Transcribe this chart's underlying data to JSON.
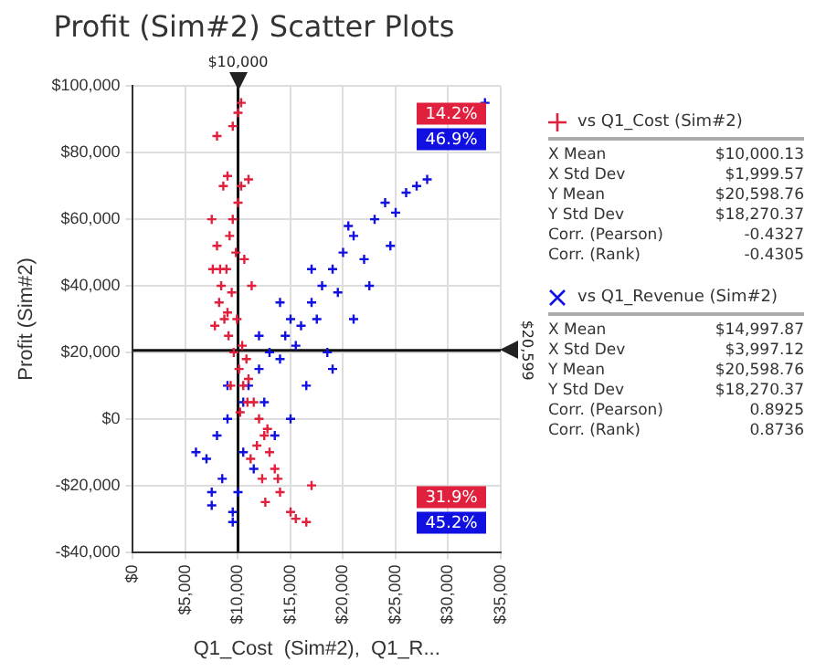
{
  "chart_data": {
    "type": "scatter",
    "title": "Profit (Sim#2) Scatter Plots",
    "xlabel": "Q1_Cost  (Sim#2),  Q1_R...",
    "ylabel": "Profit (Sim#2)",
    "xlim": [
      0,
      35000
    ],
    "ylim": [
      -40000,
      100000
    ],
    "xticks": [
      {
        "value": 0,
        "label": "$0"
      },
      {
        "value": 5000,
        "label": "$5,000"
      },
      {
        "value": 10000,
        "label": "$10,000"
      },
      {
        "value": 15000,
        "label": "$15,000"
      },
      {
        "value": 20000,
        "label": "$20,000"
      },
      {
        "value": 25000,
        "label": "$25,000"
      },
      {
        "value": 30000,
        "label": "$30,000"
      },
      {
        "value": 35000,
        "label": "$35,000"
      }
    ],
    "yticks": [
      {
        "value": -40000,
        "label": "-$40,000"
      },
      {
        "value": -20000,
        "label": "-$20,000"
      },
      {
        "value": 0,
        "label": "$0"
      },
      {
        "value": 20000,
        "label": "$20,000"
      },
      {
        "value": 40000,
        "label": "$40,000"
      },
      {
        "value": 60000,
        "label": "$60,000"
      },
      {
        "value": 80000,
        "label": "$80,000"
      },
      {
        "value": 100000,
        "label": "$100,000"
      }
    ],
    "grid": true,
    "legend": "right",
    "marker": "cross",
    "ref_lines": [
      {
        "axis": "x",
        "value": 10000,
        "label": "$10,000"
      },
      {
        "axis": "y",
        "value": 20599,
        "label": "$20,599"
      }
    ],
    "series": [
      {
        "name": "vs Q1_Cost (Sim#2)",
        "color": "#e0203c",
        "x": [
          7500,
          8000,
          8300,
          8600,
          9000,
          9200,
          9500,
          9800,
          10000,
          10300,
          10600,
          11000,
          11300,
          8200,
          8700,
          9100,
          9600,
          10100,
          10500,
          10900,
          7800,
          8400,
          8900,
          9400,
          9900,
          10400,
          10800,
          11500,
          12000,
          12500,
          13000,
          13500,
          14000,
          15000,
          15500,
          16500,
          17000,
          11800,
          12300,
          9500,
          10000,
          10300,
          8000,
          9000,
          11000,
          10200,
          12600,
          7600,
          9300,
          11200,
          13800,
          12800
        ],
        "values": [
          60000,
          85000,
          45000,
          70000,
          73000,
          55000,
          88000,
          50000,
          92000,
          95000,
          48000,
          72000,
          40000,
          35000,
          30000,
          25000,
          20000,
          15000,
          10000,
          5000,
          28000,
          40000,
          45000,
          38000,
          30000,
          22000,
          18000,
          5000,
          0,
          -5000,
          -10000,
          -15000,
          -22000,
          -28000,
          -30000,
          -31000,
          -20000,
          -8000,
          -18000,
          60000,
          65000,
          70000,
          52000,
          32000,
          12000,
          2000,
          -25000,
          45000,
          10000,
          -12000,
          -18000,
          -3000
        ]
      },
      {
        "name": "vs Q1_Revenue (Sim#2)",
        "color": "#1010e0",
        "x": [
          6000,
          7000,
          7500,
          7500,
          9500,
          9500,
          10000,
          8000,
          9000,
          10500,
          11000,
          12000,
          12500,
          13000,
          14000,
          14500,
          15000,
          15500,
          16000,
          17000,
          17500,
          18000,
          19000,
          19500,
          20000,
          21000,
          22000,
          23000,
          24000,
          25000,
          26000,
          27000,
          28000,
          33500,
          21000,
          16500,
          18500,
          13500,
          11500,
          10500,
          15000,
          20500,
          22500,
          24500,
          12000,
          14000,
          17000,
          19000,
          9000,
          8500
        ],
        "values": [
          -10000,
          -12000,
          -22000,
          -26000,
          -28000,
          -31000,
          -22000,
          -5000,
          0,
          5000,
          10000,
          15000,
          5000,
          20000,
          18000,
          25000,
          30000,
          22000,
          28000,
          35000,
          30000,
          40000,
          45000,
          38000,
          50000,
          55000,
          48000,
          60000,
          65000,
          62000,
          68000,
          70000,
          72000,
          95000,
          30000,
          10000,
          20000,
          -5000,
          -15000,
          -10000,
          0,
          58000,
          40000,
          52000,
          25000,
          35000,
          45000,
          15000,
          10000,
          -18000
        ]
      }
    ],
    "annotations": [
      "14.2%",
      "46.9%",
      "31.9%",
      "45.2%",
      "X Mean $10,000.13",
      "X Std Dev $1,999.57",
      "Y Mean $20,598.76",
      "Y Std Dev $18,270.37",
      "Corr. (Pearson) -0.4327",
      "Corr. (Rank) -0.4305",
      "X Mean $14,997.87",
      "X Std Dev $3,997.12",
      "Y Mean $20,598.76",
      "Y Std Dev $18,270.37",
      "Corr. (Pearson) 0.8925",
      "Corr. (Rank) 0.8736"
    ]
  }
}
